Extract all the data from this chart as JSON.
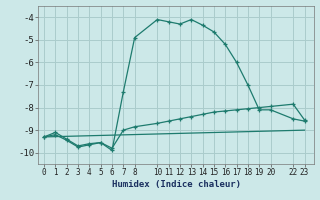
{
  "xlabel": "Humidex (Indice chaleur)",
  "background_color": "#cce8e8",
  "grid_color": "#aacccc",
  "line_color": "#1e7b6e",
  "series1_x": [
    0,
    1,
    2,
    3,
    4,
    5,
    6,
    7,
    8,
    10,
    11,
    12,
    13,
    14,
    15,
    16,
    17,
    18,
    19,
    20,
    22,
    23
  ],
  "series1_y": [
    -9.3,
    -9.1,
    -9.4,
    -9.7,
    -9.6,
    -9.55,
    -9.9,
    -7.3,
    -4.9,
    -4.1,
    -4.2,
    -4.3,
    -4.1,
    -4.35,
    -4.65,
    -5.2,
    -6.0,
    -7.0,
    -8.1,
    -8.1,
    -8.5,
    -8.6
  ],
  "series2_x": [
    0,
    1,
    2,
    3,
    4,
    5,
    6,
    7,
    8,
    10,
    11,
    12,
    13,
    14,
    15,
    16,
    17,
    18,
    19,
    20,
    22,
    23
  ],
  "series2_y": [
    -9.3,
    -9.2,
    -9.45,
    -9.75,
    -9.65,
    -9.55,
    -9.8,
    -9.0,
    -8.85,
    -8.7,
    -8.6,
    -8.5,
    -8.4,
    -8.3,
    -8.2,
    -8.15,
    -8.1,
    -8.05,
    -8.0,
    -7.95,
    -7.85,
    -8.55
  ],
  "series3_x": [
    0,
    23
  ],
  "series3_y": [
    -9.3,
    -9.0
  ],
  "xticks": [
    0,
    1,
    2,
    3,
    4,
    5,
    6,
    7,
    8,
    10,
    11,
    12,
    13,
    14,
    15,
    16,
    17,
    18,
    19,
    20,
    22,
    23
  ],
  "xlim": [
    -0.5,
    23.8
  ],
  "ylim": [
    -10.5,
    -3.5
  ],
  "yticks": [
    -10,
    -9,
    -8,
    -7,
    -6,
    -5,
    -4
  ]
}
